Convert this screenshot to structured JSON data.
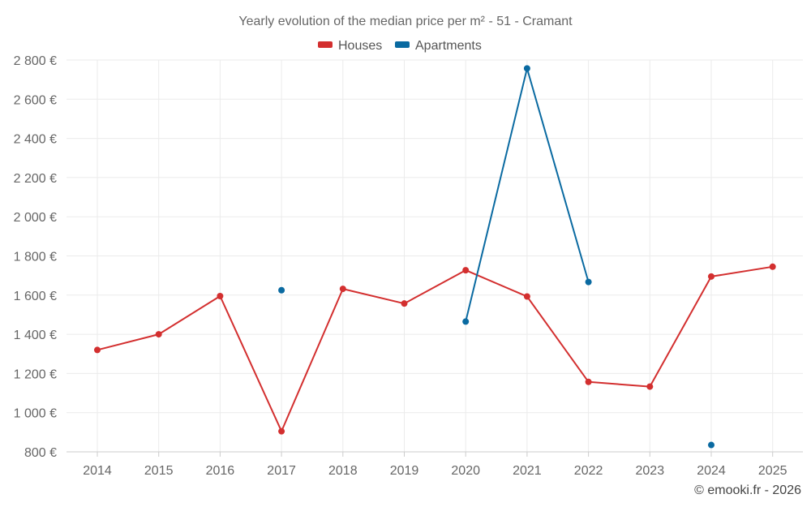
{
  "chart_data": {
    "type": "line",
    "title": "Yearly evolution of the median price per m² - 51 - Cramant",
    "categories": [
      "2014",
      "2015",
      "2016",
      "2017",
      "2018",
      "2019",
      "2020",
      "2021",
      "2022",
      "2023",
      "2024",
      "2025"
    ],
    "series": [
      {
        "name": "Houses",
        "color": "#d32f2f",
        "values": [
          1320,
          1400,
          1595,
          905,
          1632,
          1557,
          1727,
          1593,
          1157,
          1133,
          1695,
          1745
        ]
      },
      {
        "name": "Apartments",
        "color": "#0a6aa1",
        "values": [
          null,
          null,
          null,
          1625,
          null,
          null,
          1465,
          2757,
          1667,
          null,
          835,
          null
        ]
      }
    ],
    "ylim": [
      800,
      2800
    ],
    "yticks": [
      800,
      1000,
      1200,
      1400,
      1600,
      1800,
      2000,
      2200,
      2400,
      2600,
      2800
    ],
    "ytick_labels": [
      "800 €",
      "1 000 €",
      "1 200 €",
      "1 400 €",
      "1 600 €",
      "1 800 €",
      "2 000 €",
      "2 200 €",
      "2 400 €",
      "2 600 €",
      "2 800 €"
    ],
    "xlabel": "",
    "ylabel": "",
    "grid": true,
    "legend_position": "top-center"
  },
  "credit": "© emooki.fr - 2026"
}
